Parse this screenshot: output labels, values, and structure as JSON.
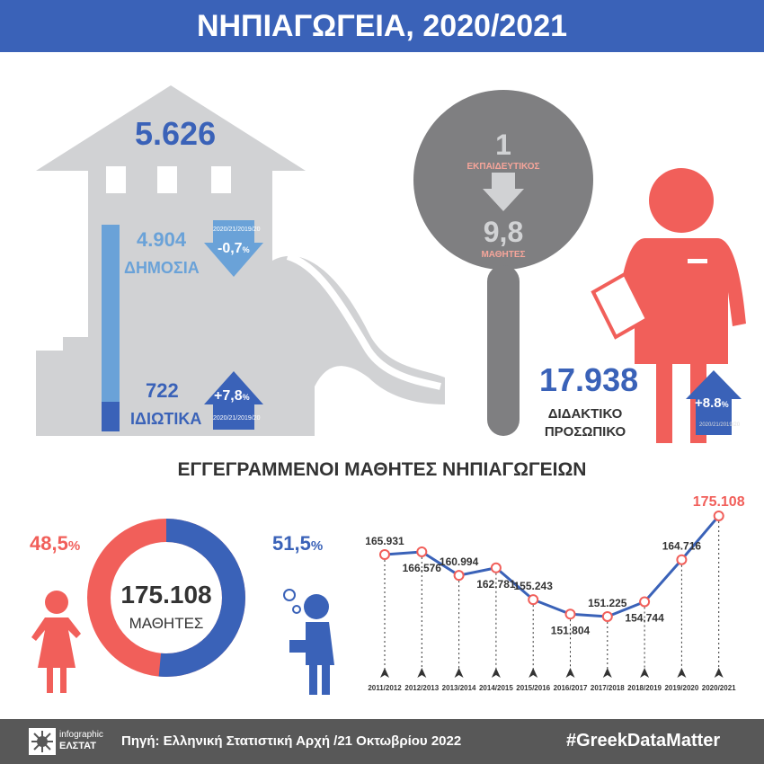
{
  "title": "ΝΗΠΙΑΓΩΓΕΙΑ, 2020/2021",
  "schools": {
    "total": "5.626",
    "public": {
      "value": "4.904",
      "label": "ΔΗΜΟΣΙΑ",
      "change": "-0,7",
      "pct": "%",
      "period": "2020/21/2019/20"
    },
    "private": {
      "value": "722",
      "label": "ΙΔΙΩΤΙΚΑ",
      "change": "+7,8",
      "pct": "%",
      "period": "2020/21/2019/20"
    }
  },
  "ratio": {
    "teacher": "1",
    "teacher_label": "ΕΚΠΑΙΔΕΥΤΙΚΟΣ",
    "students": "9,8",
    "students_label": "ΜΑΘΗΤΕΣ"
  },
  "staff": {
    "value": "17.938",
    "label1": "ΔΙΔΑΚΤΙΚΟ",
    "label2": "ΠΡΟΣΩΠΙΚΟ",
    "change": "+8.8",
    "pct": "%",
    "period": "2020/21/2019/20"
  },
  "section_title": "ΕΓΓΕΓΡΑΜΜΕΝΟΙ ΜΑΘΗΤΕΣ ΝΗΠΙΑΓΩΓΕΙΩΝ",
  "donut": {
    "total": "175.108",
    "label": "ΜΑΘΗΤΕΣ",
    "girls": "48,5",
    "boys": "51,5",
    "pct": "%",
    "colors": {
      "girls": "#f15f5a",
      "boys": "#3a62b8"
    }
  },
  "chart_data": {
    "type": "line",
    "categories": [
      "2011/2012",
      "2012/2013",
      "2013/2014",
      "2014/2015",
      "2015/2016",
      "2016/2017",
      "2017/2018",
      "2018/2019",
      "2019/2020",
      "2020/2021"
    ],
    "values": [
      165931,
      166576,
      160994,
      162781,
      155243,
      151804,
      151225,
      154744,
      164716,
      175108
    ],
    "labels": [
      "165.931",
      "166.576",
      "160.994",
      "162.781",
      "155.243",
      "151.804",
      "151.225",
      "154.744",
      "164.716",
      "175.108"
    ]
  },
  "footer": {
    "logo_top": "infographic",
    "logo_bottom": "ΕΛΣΤΑΤ",
    "source": "Πηγή: Ελληνική Στατιστική Αρχή /21 Οκτωβρίου 2022",
    "hashtag": "#GreekDataMatter"
  }
}
